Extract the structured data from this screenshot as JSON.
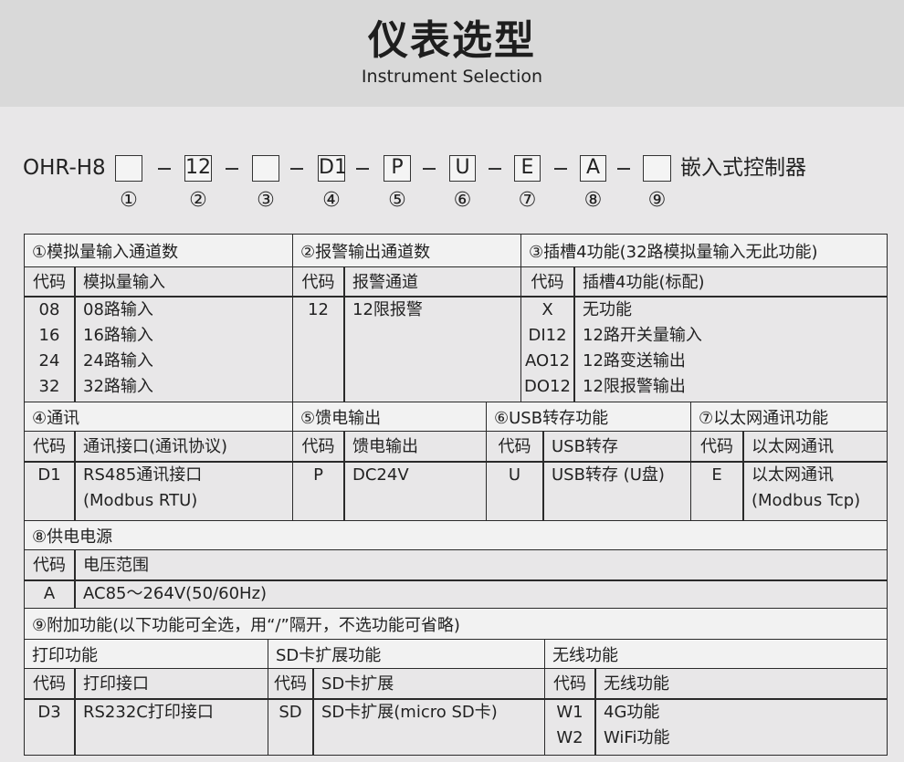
{
  "header": {
    "title": "仪表选型",
    "subtitle": "Instrument Selection"
  },
  "model": {
    "prefix": "OHR-H8",
    "segments": [
      "",
      "12",
      "",
      "D1",
      "P",
      "U",
      "E",
      "A",
      ""
    ],
    "suffix": "嵌入式控制器",
    "markers": [
      "①",
      "②",
      "③",
      "④",
      "⑤",
      "⑥",
      "⑦",
      "⑧",
      "⑨"
    ]
  },
  "sections": [
    {
      "title": "①模拟量输入通道数",
      "code_header": "代码",
      "name_header": "模拟量输入",
      "rows": [
        {
          "code": "08",
          "name": "08路输入"
        },
        {
          "code": "16",
          "name": "16路输入"
        },
        {
          "code": "24",
          "name": "24路输入"
        },
        {
          "code": "32",
          "name": "32路输入"
        }
      ]
    },
    {
      "title": "②报警输出通道数",
      "code_header": "代码",
      "name_header": "报警通道",
      "rows": [
        {
          "code": "12",
          "name": "12限报警"
        }
      ]
    },
    {
      "title": "③插槽4功能(32路模拟量输入无此功能)",
      "code_header": "代码",
      "name_header": "插槽4功能(标配)",
      "rows": [
        {
          "code": "X",
          "name": "无功能"
        },
        {
          "code": "DI12",
          "name": "12路开关量输入"
        },
        {
          "code": "AO12",
          "name": "12路变送输出"
        },
        {
          "code": "DO12",
          "name": "12限报警输出"
        }
      ]
    },
    {
      "title": "④通讯",
      "code_header": "代码",
      "name_header": "通讯接口(通讯协议)",
      "rows": [
        {
          "code": "D1",
          "name": "RS485通讯接口"
        },
        {
          "code": "",
          "name": "(Modbus RTU)"
        }
      ]
    },
    {
      "title": "⑤馈电输出",
      "code_header": "代码",
      "name_header": "馈电输出",
      "rows": [
        {
          "code": "P",
          "name": "DC24V"
        }
      ]
    },
    {
      "title": "⑥USB转存功能",
      "code_header": "代码",
      "name_header": "USB转存",
      "rows": [
        {
          "code": "U",
          "name": "USB转存 (U盘)"
        }
      ]
    },
    {
      "title": "⑦以太网通讯功能",
      "code_header": "代码",
      "name_header": "以太网通讯",
      "rows": [
        {
          "code": "E",
          "name": "以太网通讯"
        },
        {
          "code": "",
          "name": "(Modbus Tcp)"
        }
      ]
    },
    {
      "title": "⑧供电电源",
      "code_header": "代码",
      "name_header": "电压范围",
      "rows": [
        {
          "code": "A",
          "name": "AC85～264V(50/60Hz)"
        }
      ]
    },
    {
      "title": "⑨附加功能(以下功能可全选，用“/”隔开，不选功能可省略)"
    },
    {
      "title": "打印功能",
      "code_header": "代码",
      "name_header": "打印接口",
      "rows": [
        {
          "code": "D3",
          "name": "RS232C打印接口"
        }
      ]
    },
    {
      "title": "SD卡扩展功能",
      "code_header": "代码",
      "name_header": "SD卡扩展",
      "rows": [
        {
          "code": "SD",
          "name": "SD卡扩展(micro SD卡)"
        }
      ]
    },
    {
      "title": "无线功能",
      "code_header": "代码",
      "name_header": "无线功能",
      "rows": [
        {
          "code": "W1",
          "name": "4G功能"
        },
        {
          "code": "W2",
          "name": "WiFi功能"
        }
      ]
    }
  ]
}
